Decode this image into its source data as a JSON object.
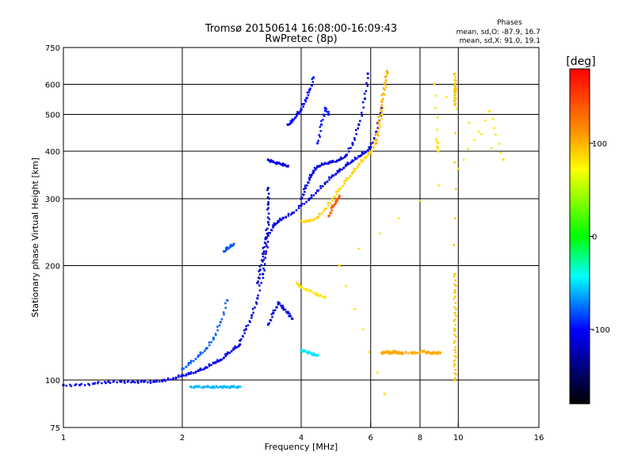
{
  "chart_data": {
    "type": "scatter",
    "title": "Tromsø 20150614 16:08:00-16:09:43",
    "subtitle": "RwPretec (8p)",
    "xlabel": "Frequency [MHz]",
    "ylabel": "Stationary phase Virtual Height [km]",
    "x_scale": "log",
    "y_scale": "log",
    "xlim": [
      1,
      16
    ],
    "ylim": [
      75,
      750
    ],
    "x_ticks": [
      1,
      2,
      4,
      6,
      8,
      10,
      16
    ],
    "y_ticks": [
      75,
      100,
      200,
      300,
      400,
      500,
      600,
      750
    ],
    "x_grid": [
      2,
      4,
      6,
      8,
      10
    ],
    "y_grid": [
      100,
      200,
      300,
      400,
      500,
      600
    ],
    "grid": true,
    "phase_info": {
      "title": "Phases",
      "line_o": "mean, sd,O: -87.9, 16.7",
      "line_x": "mean, sd,X:  91.0, 19.1"
    },
    "colorbar": {
      "label": "[deg]",
      "range": [
        -180,
        180
      ],
      "ticks": [
        100,
        0,
        -100
      ],
      "colors": [
        "#ff0000",
        "#ff8c00",
        "#ffff00",
        "#00ff00",
        "#00ffff",
        "#0000ff",
        "#000000"
      ]
    },
    "series": [
      {
        "trace": "low-freq-base",
        "x": [
          1.0,
          1.1,
          1.2,
          1.3,
          1.4,
          1.5,
          1.6,
          1.7,
          1.8,
          1.9,
          2.0,
          2.1,
          2.2,
          2.3,
          2.4,
          2.5,
          2.6,
          2.7,
          2.8
        ],
        "y": [
          97,
          97,
          98,
          99,
          99,
          99,
          99,
          99,
          100,
          101,
          103,
          104,
          106,
          108,
          111,
          113,
          117,
          121,
          124
        ],
        "phase": -105
      },
      {
        "trace": "low-freq-upper",
        "x": [
          2.0,
          2.1,
          2.2,
          2.3,
          2.4,
          2.5,
          2.6
        ],
        "y": [
          107,
          111,
          116,
          121,
          129,
          142,
          162
        ],
        "phase": -80
      },
      {
        "trace": "o-mode-f1",
        "x": [
          2.8,
          2.9,
          3.0,
          3.1,
          3.2,
          3.25,
          3.3,
          3.4,
          3.5,
          3.6,
          3.8,
          4.0,
          4.2,
          4.4,
          4.6,
          4.8,
          5.0,
          5.2,
          5.4,
          5.6,
          5.8,
          6.0,
          6.2,
          6.4
        ],
        "y": [
          127,
          136,
          148,
          164,
          190,
          215,
          240,
          255,
          262,
          267,
          275,
          288,
          300,
          315,
          330,
          345,
          355,
          368,
          378,
          388,
          398,
          410,
          450,
          520
        ],
        "phase": -110
      },
      {
        "trace": "o-mode-cusp",
        "x": [
          3.1,
          3.15,
          3.2,
          3.25,
          3.3,
          3.3,
          3.3
        ],
        "y": [
          180,
          195,
          215,
          235,
          260,
          290,
          320
        ],
        "phase": -120
      },
      {
        "trace": "o-mode-f2",
        "x": [
          4.0,
          4.1,
          4.2,
          4.3,
          4.4,
          4.6,
          4.8,
          5.0,
          5.2,
          5.4,
          5.6,
          5.8,
          5.9
        ],
        "y": [
          300,
          320,
          340,
          355,
          365,
          372,
          375,
          380,
          390,
          420,
          470,
          550,
          640
        ],
        "phase": -112
      },
      {
        "trace": "x-mode",
        "x": [
          4.0,
          4.2,
          4.4,
          4.6,
          4.8,
          5.0,
          5.2,
          5.4,
          5.6,
          5.8,
          6.0,
          6.2,
          6.4,
          6.6
        ],
        "y": [
          262,
          262,
          268,
          282,
          300,
          318,
          335,
          352,
          370,
          385,
          398,
          430,
          500,
          640
        ],
        "phase": 95
      },
      {
        "trace": "x-mode-warm",
        "x": [
          4.7,
          4.8,
          4.9,
          5.0
        ],
        "y": [
          270,
          285,
          295,
          305
        ],
        "phase": 140
      },
      {
        "trace": "x-mode-top",
        "x": [
          6.2,
          6.3,
          6.4,
          6.5,
          6.6
        ],
        "y": [
          420,
          480,
          540,
          600,
          650
        ],
        "phase": 110
      },
      {
        "trace": "echo-high",
        "x": [
          3.7,
          3.8,
          3.9,
          4.0,
          4.1,
          4.2,
          4.3
        ],
        "y": [
          470,
          480,
          500,
          515,
          545,
          580,
          625
        ],
        "phase": -100
      },
      {
        "trace": "echo-high-2",
        "x": [
          4.4,
          4.5,
          4.6,
          4.7
        ],
        "y": [
          420,
          470,
          520,
          500
        ],
        "phase": -95
      },
      {
        "trace": "echo-3.6",
        "x": [
          3.3,
          3.4,
          3.5,
          3.6,
          3.7
        ],
        "y": [
          380,
          375,
          372,
          370,
          365
        ],
        "phase": -110
      },
      {
        "trace": "echo-2.6",
        "x": [
          2.55,
          2.6,
          2.65,
          2.7
        ],
        "y": [
          218,
          222,
          225,
          228
        ],
        "phase": -80
      },
      {
        "trace": "echo-100",
        "x": [
          2.1,
          2.2,
          2.3,
          2.4,
          2.5,
          2.6,
          2.7,
          2.8
        ],
        "y": [
          96,
          96,
          96,
          96,
          96,
          96,
          96,
          96
        ],
        "phase": -60
      },
      {
        "trace": "spread-3.4",
        "x": [
          3.3,
          3.4,
          3.5,
          3.6,
          3.7,
          3.8
        ],
        "y": [
          140,
          150,
          160,
          155,
          150,
          145
        ],
        "phase": -110
      },
      {
        "trace": "yellow-170",
        "x": [
          3.9,
          4.0,
          4.2,
          4.4,
          4.6
        ],
        "y": [
          180,
          175,
          172,
          168,
          165
        ],
        "phase": 90
      },
      {
        "trace": "echo-120",
        "x": [
          4.0,
          4.1,
          4.2,
          4.3,
          4.4
        ],
        "y": [
          120,
          119,
          118,
          117,
          116
        ],
        "phase": -50
      },
      {
        "trace": "band-120",
        "x": [
          6.4,
          6.5,
          6.6,
          6.7,
          6.8,
          6.9,
          7.0,
          7.1,
          7.2,
          7.6,
          7.8,
          8.2,
          8.4,
          8.6,
          8.8,
          9.0
        ],
        "y": [
          118,
          118,
          119,
          118,
          118,
          119,
          118,
          118,
          118,
          118,
          118,
          119,
          118,
          118,
          118,
          118
        ],
        "phase": 110
      },
      {
        "trace": "vertical-9.8",
        "x": [
          9.8,
          9.8,
          9.8,
          9.8,
          9.8,
          9.8,
          9.8,
          9.8,
          9.8,
          9.8,
          9.8,
          9.8
        ],
        "y": [
          100,
          110,
          120,
          135,
          150,
          170,
          190,
          530,
          560,
          580,
          600,
          640
        ],
        "phase": 100
      },
      {
        "trace": "scattered",
        "x": [
          8.8,
          8.9,
          8.7,
          13.0,
          12.0,
          10.0,
          5.0,
          6.5
        ],
        "y": [
          430,
          400,
          600,
          380,
          510,
          360,
          200,
          92
        ],
        "phase": 90
      }
    ]
  }
}
